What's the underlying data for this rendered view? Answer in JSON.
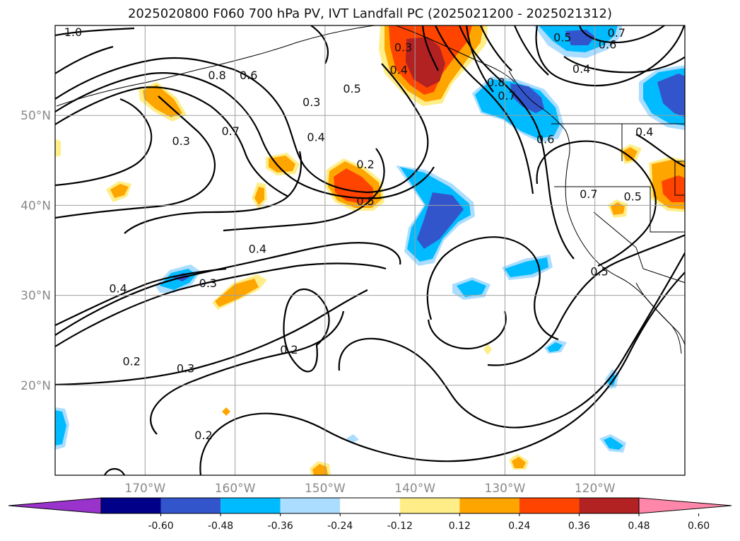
{
  "title": "2025020800 F060 700 hPa PV, IVT Landfall PC (2025021200 - 2025021312)",
  "map": {
    "lon_range": [
      -180,
      -110
    ],
    "lat_range": [
      10,
      60
    ],
    "lon_ticks": [
      {
        "value": -170,
        "label": "170°W"
      },
      {
        "value": -160,
        "label": "160°W"
      },
      {
        "value": -150,
        "label": "150°W"
      },
      {
        "value": -140,
        "label": "140°W"
      },
      {
        "value": -130,
        "label": "130°W"
      },
      {
        "value": -120,
        "label": "120°W"
      }
    ],
    "lat_ticks": [
      {
        "value": 50,
        "label": "50°N"
      },
      {
        "value": 40,
        "label": "40°N"
      },
      {
        "value": 30,
        "label": "30°N"
      },
      {
        "value": 20,
        "label": "20°N"
      }
    ],
    "gridlines": true
  },
  "contour_labels": [
    {
      "text": "1.0",
      "lon": -178,
      "lat": 59.3
    },
    {
      "text": "0.8",
      "lon": -162,
      "lat": 54.5
    },
    {
      "text": "0.6",
      "lon": -158.5,
      "lat": 54.5
    },
    {
      "text": "0.7",
      "lon": -160.5,
      "lat": 48.3
    },
    {
      "text": "0.3",
      "lon": -166,
      "lat": 47.2
    },
    {
      "text": "0.5",
      "lon": -147,
      "lat": 53
    },
    {
      "text": "0.3",
      "lon": -151.5,
      "lat": 51.5
    },
    {
      "text": "0.4",
      "lon": -151,
      "lat": 47.6
    },
    {
      "text": "0.2",
      "lon": -145.5,
      "lat": 44.6
    },
    {
      "text": "0.5",
      "lon": -145.5,
      "lat": 40.5
    },
    {
      "text": "0.4",
      "lon": -157.5,
      "lat": 35.2
    },
    {
      "text": "0.3",
      "lon": -163,
      "lat": 31.4
    },
    {
      "text": "0.4",
      "lon": -173,
      "lat": 30.8
    },
    {
      "text": "0.2",
      "lon": -154,
      "lat": 24
    },
    {
      "text": "0.2",
      "lon": -171.5,
      "lat": 22.7
    },
    {
      "text": "0.3",
      "lon": -165.5,
      "lat": 21.9
    },
    {
      "text": "0.2",
      "lon": -163.5,
      "lat": 14.5
    },
    {
      "text": "0.3",
      "lon": -141.3,
      "lat": 57.6
    },
    {
      "text": "0.4",
      "lon": -141.8,
      "lat": 55.1
    },
    {
      "text": "0.8",
      "lon": -131,
      "lat": 53.7
    },
    {
      "text": "0.7",
      "lon": -129.8,
      "lat": 52.2
    },
    {
      "text": "0.5",
      "lon": -123.6,
      "lat": 58.7
    },
    {
      "text": "0.6",
      "lon": -118.6,
      "lat": 57.9
    },
    {
      "text": "0.7",
      "lon": -117.6,
      "lat": 59.2
    },
    {
      "text": "0.4",
      "lon": -121.5,
      "lat": 55.2
    },
    {
      "text": "0.6",
      "lon": -125.5,
      "lat": 47.4
    },
    {
      "text": "0.4",
      "lon": -114.5,
      "lat": 48.2
    },
    {
      "text": "0.7",
      "lon": -120.7,
      "lat": 41.3
    },
    {
      "text": "0.5",
      "lon": -119.5,
      "lat": 32.7
    },
    {
      "text": "0.5",
      "lon": -115.8,
      "lat": 41
    }
  ],
  "colorbar": {
    "labels": [
      "-0.60",
      "-0.48",
      "-0.36",
      "-0.24",
      "-0.12",
      "0.12",
      "0.24",
      "0.36",
      "0.48",
      "0.60"
    ],
    "colors": [
      "#9933cc",
      "#000088",
      "#3355cc",
      "#00bbff",
      "#aaddff",
      "#ffffff",
      "#ffee88",
      "#ffa500",
      "#ff4400",
      "#b22222",
      "#ff88aa"
    ]
  }
}
